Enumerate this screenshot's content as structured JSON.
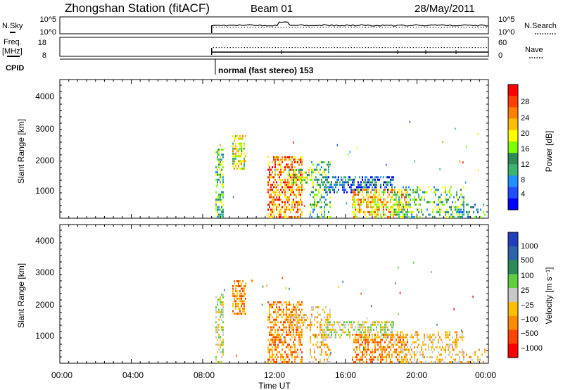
{
  "header": {
    "station": "Zhongshan Station (fitACF)",
    "beam": "Beam 01",
    "date": "28/May/2011"
  },
  "top_panels": {
    "nsky_label": "N.Sky",
    "nsky_ticks": [
      "10^5",
      "10^0"
    ],
    "nsearch_label": "N.Search",
    "nsearch_ticks": [
      "10^5",
      "10^0"
    ],
    "freq_label": "Freq.",
    "freq_unit": "[MHz]",
    "freq_ticks": [
      "18",
      "8"
    ],
    "nave_label": "Nave",
    "nave_ticks": [
      "60",
      "0"
    ],
    "cpid_label": "CPID",
    "cpid_text": "normal (fast stereo) 153"
  },
  "chart_data": [
    {
      "type": "heatmap",
      "name": "power",
      "ylabel": "Slant Range [km]",
      "y_ticks": [
        "4000",
        "3000",
        "2000",
        "1000"
      ],
      "ylim": [
        180,
        4500
      ],
      "colorbar_label": "Power [dB]",
      "colorbar_ticks": [
        "28",
        "24",
        "20",
        "16",
        "12",
        "8",
        "4"
      ],
      "colorbar_colors": [
        "#ff0000",
        "#ff4000",
        "#ff8000",
        "#ffbf00",
        "#ffff00",
        "#7fff00",
        "#2e8b57",
        "#3cb371",
        "#1e90ff",
        "#1f4fff",
        "#0000ff"
      ],
      "data_start_time": "08:30",
      "data_end_time": "24:00"
    },
    {
      "type": "heatmap",
      "name": "velocity",
      "ylabel": "Slant Range [km]",
      "y_ticks": [
        "4000",
        "3000",
        "2000",
        "1000"
      ],
      "ylim": [
        180,
        4500
      ],
      "colorbar_label": "Velocity [m s⁻¹]",
      "colorbar_ticks": [
        "1000",
        "500",
        "100",
        "25",
        "−25",
        "−100",
        "−500",
        "−1000"
      ],
      "colorbar_colors": [
        "#1f3fbf",
        "#2e64a8",
        "#2e8b57",
        "#5fcf3f",
        "#c8c8c8",
        "#ffbf00",
        "#ff8c00",
        "#ff4500",
        "#ff0000"
      ],
      "data_start_time": "08:30",
      "data_end_time": "24:00"
    }
  ],
  "x_axis": {
    "ticks": [
      "00:00",
      "04:00",
      "08:00",
      "12:00",
      "16:00",
      "20:00",
      "00:00"
    ],
    "label": "Time UT"
  }
}
